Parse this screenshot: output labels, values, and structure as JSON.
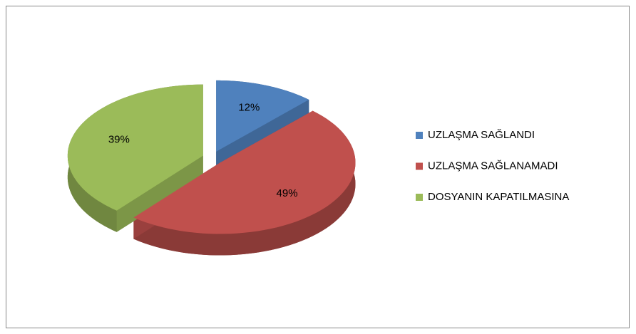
{
  "chart_data": {
    "type": "pie",
    "categories": [
      "UZLAŞMA SAĞLANDI",
      "UZLAŞMA SAĞLANAMADI",
      "DOSYANIN KAPATILMASINA"
    ],
    "values": [
      12,
      49,
      39
    ],
    "value_labels": [
      "12%",
      "49%",
      "39%"
    ],
    "colors": [
      "#4f81bd",
      "#c0504d",
      "#9bbb59"
    ],
    "legend": "right"
  }
}
